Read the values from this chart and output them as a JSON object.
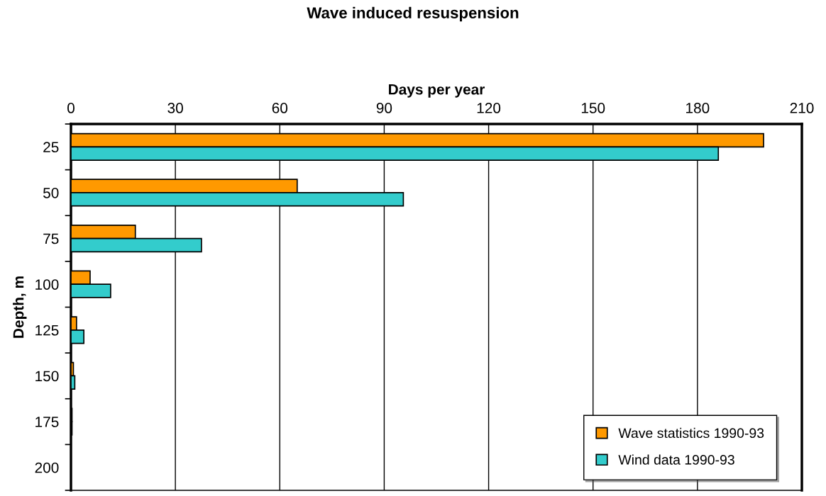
{
  "chart_data": {
    "type": "bar",
    "orientation": "horizontal",
    "title": "Wave induced resuspension",
    "xlabel": "Days per year",
    "ylabel": "Depth, m",
    "categories": [
      "25",
      "50",
      "75",
      "100",
      "125",
      "150",
      "175",
      "200"
    ],
    "series": [
      {
        "name": "Wave statistics 1990-93",
        "color": "#ff9900",
        "values": [
          199,
          65,
          18.5,
          5.5,
          1.6,
          0.7,
          0.3,
          null
        ]
      },
      {
        "name": "Wind data 1990-93",
        "color": "#33cccc",
        "values": [
          186,
          95.5,
          37.5,
          11.4,
          3.7,
          1.1,
          0.3,
          null
        ]
      }
    ],
    "xlim": [
      0,
      210
    ],
    "xticks": [
      0,
      30,
      60,
      90,
      120,
      150,
      180,
      210
    ],
    "grid": "x",
    "legend": "bottom right"
  }
}
